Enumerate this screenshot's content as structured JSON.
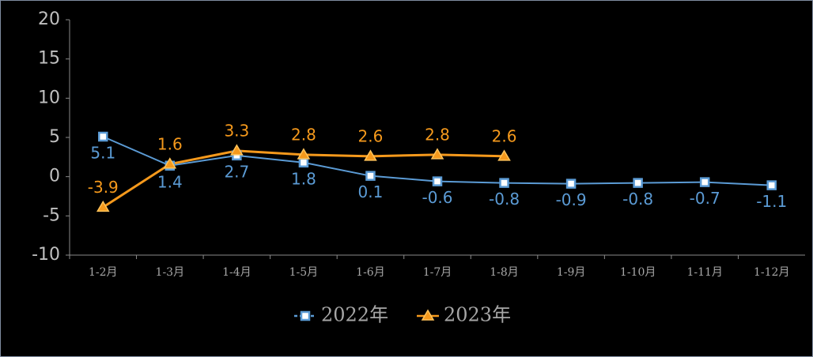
{
  "chart_data": {
    "type": "line",
    "categories": [
      "1-2月",
      "1-3月",
      "1-4月",
      "1-5月",
      "1-6月",
      "1-7月",
      "1-8月",
      "1-9月",
      "1-10月",
      "1-11月",
      "1-12月"
    ],
    "series": [
      {
        "name": "2022年",
        "color": "#5b9bd5",
        "marker": "square",
        "label_position": "below",
        "values": [
          5.1,
          1.4,
          2.7,
          1.8,
          0.1,
          -0.6,
          -0.8,
          -0.9,
          -0.8,
          -0.7,
          -1.1
        ]
      },
      {
        "name": "2023年",
        "color": "#f5991c",
        "marker": "triangle",
        "label_position": "above",
        "values": [
          -3.9,
          1.6,
          3.3,
          2.8,
          2.6,
          2.8,
          2.6,
          null,
          null,
          null,
          null
        ]
      }
    ],
    "ylim": [
      -10,
      20
    ],
    "yticks": [
      -10,
      -5,
      0,
      5,
      10,
      15,
      20
    ],
    "grid": false,
    "legend": "bottom"
  }
}
